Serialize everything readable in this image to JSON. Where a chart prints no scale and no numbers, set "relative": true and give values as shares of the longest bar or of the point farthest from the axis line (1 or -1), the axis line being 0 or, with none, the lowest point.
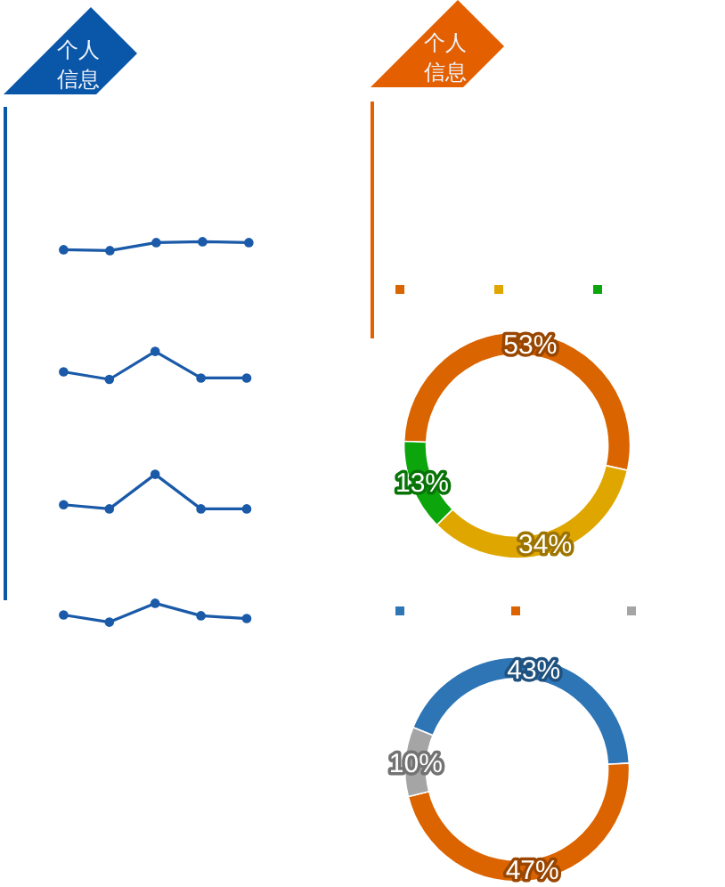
{
  "chart_data": [
    {
      "type": "other",
      "title": "个人信息",
      "color": "#0a56a8"
    },
    {
      "type": "line",
      "relative": true,
      "categories": [
        null,
        null,
        null,
        null,
        null
      ],
      "series": [
        {
          "color": "#1a5aa8",
          "values": [
            0.1,
            0,
            0.9,
            1,
            0.9
          ]
        }
      ],
      "marker": "circle"
    },
    {
      "type": "line",
      "relative": true,
      "categories": [
        null,
        null,
        null,
        null,
        null
      ],
      "series": [
        {
          "color": "#1a5aa8",
          "values": [
            0.27,
            0,
            1,
            0.05,
            0.05
          ]
        }
      ],
      "marker": "circle"
    },
    {
      "type": "line",
      "relative": true,
      "categories": [
        null,
        null,
        null,
        null,
        null
      ],
      "series": [
        {
          "color": "#1a5aa8",
          "values": [
            0.12,
            0,
            1,
            0,
            0
          ]
        }
      ],
      "marker": "circle"
    },
    {
      "type": "line",
      "relative": true,
      "categories": [
        null,
        null,
        null,
        null,
        null
      ],
      "series": [
        {
          "color": "#1a5aa8",
          "values": [
            0.38,
            0,
            1,
            0.34,
            0.19
          ]
        }
      ],
      "marker": "circle"
    },
    {
      "type": "other",
      "title": "个人信息",
      "color": "#e35f00"
    },
    {
      "type": "donut",
      "categories": [
        null,
        null,
        null
      ],
      "values": [
        53,
        34,
        13
      ],
      "colors": [
        "#d96400",
        "#e0a600",
        "#0ca60c"
      ],
      "value_labels": [
        "53%",
        "34%",
        "13%"
      ]
    },
    {
      "type": "donut",
      "categories": [
        null,
        null,
        null
      ],
      "values": [
        43,
        47,
        10
      ],
      "colors": [
        "#2e75b6",
        "#dc6400",
        "#a5a5a5"
      ],
      "value_labels": [
        "43%",
        "47%",
        "10%"
      ]
    }
  ]
}
